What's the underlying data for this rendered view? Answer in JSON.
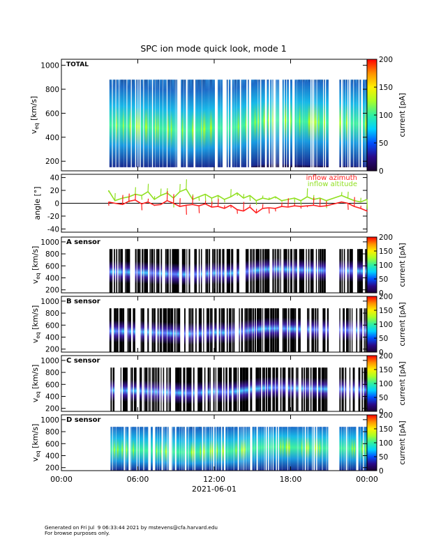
{
  "title": "SPC ion mode quick look, mode 1",
  "footer": {
    "line1": "Generated on Fri Jul  9 06:33:44 2021 by mstevens@cfa.harvard.edu",
    "line2": "For browse purposes only."
  },
  "time_axis": {
    "tick_labels": [
      "00:00",
      "06:00",
      "12:00",
      "18:00",
      "00:00"
    ],
    "tick_hours": [
      0,
      6,
      12,
      18,
      24
    ],
    "date_label": "2021-06-01",
    "range_hours": [
      0,
      24
    ]
  },
  "colorbar": {
    "label": "current [pA]",
    "palette": [
      "#1a0033",
      "#2a0a8a",
      "#0050ff",
      "#00d2ff",
      "#30f0a0",
      "#a8ff28",
      "#fff000",
      "#ff9000",
      "#ff0000"
    ]
  },
  "chart_data": [
    {
      "type": "heatmap",
      "panel_label": "TOTAL",
      "ylabel_main": "v",
      "ylabel_sub": "eq",
      "ylabel_unit": " [km/s]",
      "ylim": [
        120,
        1050
      ],
      "yticks": [
        200,
        400,
        600,
        800,
        1000
      ],
      "y_data_range": [
        150,
        880
      ],
      "colorbar_range": [
        0,
        200
      ],
      "colorbar_ticks": [
        0,
        50,
        100,
        150,
        200
      ],
      "peak_speed_kms": [
        [
          3.7,
          500
        ],
        [
          5.0,
          495
        ],
        [
          6.0,
          490
        ],
        [
          7.0,
          480
        ],
        [
          8.0,
          470
        ],
        [
          9.0,
          460
        ],
        [
          10.0,
          455
        ],
        [
          11.0,
          465
        ],
        [
          12.0,
          480
        ],
        [
          13.0,
          470
        ],
        [
          14.0,
          490
        ],
        [
          15.0,
          520
        ],
        [
          16.0,
          540
        ],
        [
          17.0,
          545
        ],
        [
          18.0,
          535
        ],
        [
          19.0,
          530
        ],
        [
          20.0,
          525
        ],
        [
          21.0,
          520
        ],
        [
          22.0,
          520
        ],
        [
          23.0,
          515
        ],
        [
          24.0,
          510
        ]
      ],
      "data_gaps_hours": [
        [
          0,
          3.7
        ],
        [
          20.9,
          21.8
        ]
      ]
    },
    {
      "type": "line",
      "ylabel": "angle [°]",
      "ylim": [
        -45,
        45
      ],
      "yticks": [
        -40,
        -20,
        0,
        20,
        40
      ],
      "zero_line": true,
      "legend_position": "top-right",
      "series": [
        {
          "name": "inflow azimuth",
          "color": "#ff2020",
          "x": [
            3.7,
            4.2,
            4.8,
            5.3,
            5.8,
            6.3,
            6.8,
            7.3,
            7.8,
            8.3,
            8.8,
            9.3,
            9.8,
            10.3,
            10.8,
            11.3,
            11.8,
            12.3,
            12.8,
            13.3,
            13.8,
            14.3,
            14.8,
            15.3,
            15.8,
            16.3,
            16.8,
            17.3,
            17.8,
            18.3,
            18.8,
            19.3,
            19.8,
            20.3,
            20.8,
            22.0,
            22.5,
            23.0,
            23.5,
            24.0
          ],
          "y": [
            2,
            0,
            -2,
            3,
            5,
            -1,
            2,
            -3,
            -2,
            4,
            0,
            -5,
            -3,
            -2,
            -4,
            -1,
            -6,
            -5,
            -8,
            -3,
            -10,
            -12,
            -6,
            -15,
            -8,
            -7,
            -8,
            -5,
            -6,
            -4,
            -5,
            -4,
            -3,
            -5,
            -4,
            2,
            0,
            -5,
            -8,
            -12
          ]
        },
        {
          "name": "inflow altitude",
          "color": "#90e020",
          "x": [
            3.7,
            4.2,
            4.8,
            5.3,
            5.8,
            6.3,
            6.8,
            7.3,
            7.8,
            8.3,
            8.8,
            9.3,
            9.8,
            10.3,
            10.8,
            11.3,
            11.8,
            12.3,
            12.8,
            13.3,
            13.8,
            14.3,
            14.8,
            15.3,
            15.8,
            16.3,
            16.8,
            17.3,
            17.8,
            18.3,
            18.8,
            19.3,
            19.8,
            20.3,
            20.8,
            22.0,
            22.5,
            23.0,
            23.5,
            24.0
          ],
          "y": [
            20,
            4,
            8,
            10,
            14,
            12,
            18,
            6,
            12,
            16,
            8,
            18,
            22,
            6,
            10,
            14,
            8,
            12,
            6,
            10,
            16,
            8,
            12,
            4,
            8,
            6,
            10,
            4,
            6,
            8,
            4,
            10,
            6,
            8,
            4,
            12,
            8,
            4,
            2,
            6
          ]
        }
      ],
      "data_gaps_hours": [
        [
          0,
          3.7
        ],
        [
          20.9,
          21.8
        ]
      ]
    },
    {
      "type": "heatmap",
      "panel_label": "A sensor",
      "ylabel_main": "v",
      "ylabel_sub": "eq",
      "ylabel_unit": " [km/s]",
      "ylim": [
        150,
        1080
      ],
      "yticks": [
        200,
        400,
        600,
        800,
        1000
      ],
      "y_data_range": [
        150,
        880
      ],
      "colorbar_range": [
        0,
        200
      ],
      "colorbar_ticks": [
        0,
        50,
        100,
        150,
        200
      ],
      "data_gaps_hours": [
        [
          0,
          3.7
        ],
        [
          20.9,
          21.8
        ]
      ]
    },
    {
      "type": "heatmap",
      "panel_label": "B sensor",
      "ylabel_main": "v",
      "ylabel_sub": "eq",
      "ylabel_unit": " [km/s]",
      "ylim": [
        150,
        1080
      ],
      "yticks": [
        200,
        400,
        600,
        800,
        1000
      ],
      "y_data_range": [
        150,
        880
      ],
      "colorbar_range": [
        0,
        200
      ],
      "colorbar_ticks": [
        0,
        50,
        100,
        150,
        200
      ],
      "data_gaps_hours": [
        [
          0,
          3.7
        ],
        [
          20.9,
          21.8
        ]
      ]
    },
    {
      "type": "heatmap",
      "panel_label": "C sensor",
      "ylabel_main": "v",
      "ylabel_sub": "eq",
      "ylabel_unit": " [km/s]",
      "ylim": [
        150,
        1080
      ],
      "yticks": [
        200,
        400,
        600,
        800,
        1000
      ],
      "y_data_range": [
        150,
        880
      ],
      "colorbar_range": [
        0,
        200
      ],
      "colorbar_ticks": [
        0,
        50,
        100,
        150,
        200
      ],
      "data_gaps_hours": [
        [
          0,
          3.7
        ],
        [
          20.9,
          21.8
        ]
      ]
    },
    {
      "type": "heatmap",
      "panel_label": "D sensor",
      "ylabel_main": "v",
      "ylabel_sub": "eq",
      "ylabel_unit": " [km/s]",
      "ylim": [
        150,
        1080
      ],
      "yticks": [
        200,
        400,
        600,
        800,
        1000
      ],
      "y_data_range": [
        150,
        880
      ],
      "colorbar_range": [
        0,
        200
      ],
      "colorbar_ticks": [
        0,
        50,
        100,
        150,
        200
      ],
      "data_gaps_hours": [
        [
          0,
          3.7
        ],
        [
          20.9,
          21.8
        ]
      ]
    }
  ]
}
